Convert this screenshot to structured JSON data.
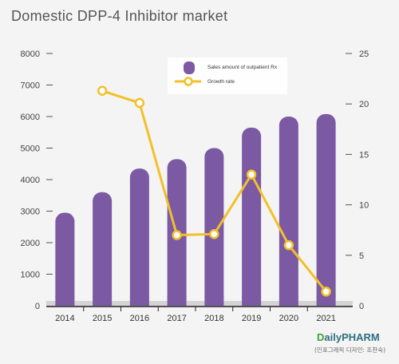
{
  "chart_data": {
    "type": "bar",
    "title": "Domestic DPP-4 Inhibitor market",
    "categories": [
      "2014",
      "2015",
      "2016",
      "2017",
      "2018",
      "2019",
      "2020",
      "2021"
    ],
    "series": [
      {
        "name": "Sales amount of outpatient Rx",
        "type": "bar",
        "axis": "left",
        "color": "#7b59a3",
        "values": [
          2950,
          3600,
          4350,
          4650,
          5000,
          5650,
          6000,
          6080
        ]
      },
      {
        "name": "Growth rate",
        "type": "line",
        "axis": "right",
        "color": "#f2c029",
        "values": [
          null,
          21.3,
          20.1,
          7.0,
          7.1,
          13.0,
          6.0,
          1.4
        ]
      }
    ],
    "y_left": {
      "min": 0,
      "max": 8000,
      "ticks": [
        0,
        1000,
        2000,
        3000,
        4000,
        5000,
        6000,
        7000,
        8000
      ]
    },
    "y_right": {
      "min": 0,
      "max": 25,
      "ticks": [
        0,
        5,
        10,
        15,
        20,
        25
      ]
    },
    "legend_position": "top-center",
    "grid": false
  },
  "brand": {
    "name": "DailyPHARM",
    "credit": "(인포그래픽 디자인: 조찬숙)"
  }
}
